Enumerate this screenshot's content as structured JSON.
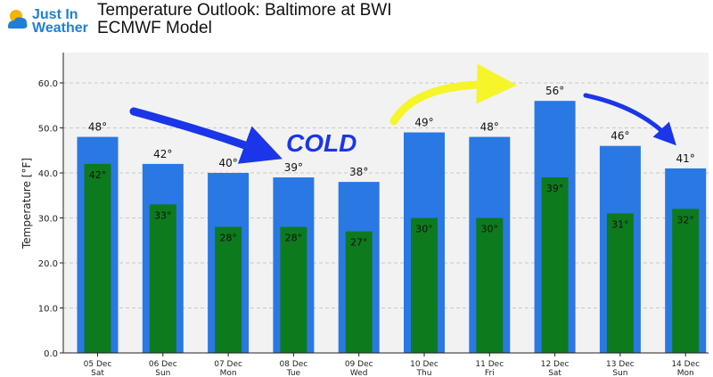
{
  "brand": {
    "line1": "Just In",
    "line2": "Weather"
  },
  "title": "Temperature Outlook: Baltimore at BWI",
  "subtitle": "ECMWF Model",
  "annotation": "COLD",
  "colors": {
    "high": "#2a78e4",
    "low": "#0e7a1e",
    "plot_bg": "#f2f2f2",
    "arrow_blue": "#1a36e8",
    "arrow_yellow": "#f5f52a"
  },
  "chart_data": {
    "type": "bar",
    "ylabel": "Temperature [°F]",
    "ylim": [
      0,
      60
    ],
    "yticks": [
      "0.0",
      "10.0",
      "20.0",
      "30.0",
      "40.0",
      "50.0",
      "60.0"
    ],
    "grid": true,
    "categories": [
      {
        "date": "05 Dec",
        "day": "Sat"
      },
      {
        "date": "06 Dec",
        "day": "Sun"
      },
      {
        "date": "07 Dec",
        "day": "Mon"
      },
      {
        "date": "08 Dec",
        "day": "Tue"
      },
      {
        "date": "09 Dec",
        "day": "Wed"
      },
      {
        "date": "10 Dec",
        "day": "Thu"
      },
      {
        "date": "11 Dec",
        "day": "Fri"
      },
      {
        "date": "12 Dec",
        "day": "Sat"
      },
      {
        "date": "13 Dec",
        "day": "Sun"
      },
      {
        "date": "14 Dec",
        "day": "Mon"
      }
    ],
    "series": [
      {
        "values": [
          48,
          42,
          40,
          39,
          38,
          49,
          48,
          56,
          46,
          41
        ],
        "labels": [
          "48°",
          "42°",
          "40°",
          "39°",
          "38°",
          "49°",
          "48°",
          "56°",
          "46°",
          "41°"
        ]
      },
      {
        "values": [
          42,
          33,
          28,
          28,
          27,
          30,
          30,
          39,
          31,
          32
        ],
        "labels": [
          "42°",
          "33°",
          "28°",
          "28°",
          "27°",
          "30°",
          "30°",
          "39°",
          "31°",
          "32°"
        ]
      }
    ]
  }
}
